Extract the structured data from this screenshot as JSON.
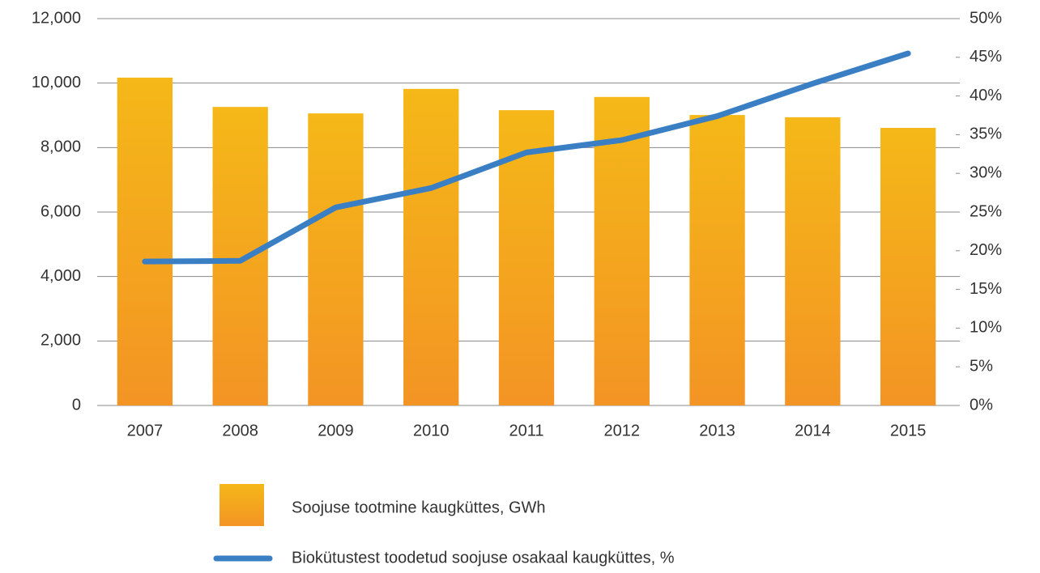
{
  "chart_data": {
    "type": "bar_line",
    "categories": [
      "2007",
      "2008",
      "2009",
      "2010",
      "2011",
      "2012",
      "2013",
      "2014",
      "2015"
    ],
    "series": [
      {
        "name": "Soojuse tootmine kaugküttes, GWh",
        "color": "#f5b818",
        "type": "bar",
        "values": [
          10170,
          9260,
          9060,
          9820,
          9160,
          9570,
          9010,
          8940,
          8610
        ]
      },
      {
        "name": "Biokütustest toodetud soojuse osakaal kaugküttes, %",
        "color": "#3a7fc4",
        "type": "line",
        "axis": "y2",
        "values": [
          18.6,
          18.7,
          25.6,
          28.1,
          32.7,
          34.3,
          37.4,
          41.6,
          45.5
        ]
      }
    ],
    "ylim": [
      0,
      12000
    ],
    "yticks": [
      0,
      {
        "value": 2000,
        "label": "2,000"
      },
      {
        "value": 4000,
        "label": "4,000"
      },
      {
        "value": 6000,
        "label": "6,000"
      },
      {
        "value": 8000,
        "label": "8,000"
      },
      {
        "value": 10000,
        "label": "10,000"
      },
      {
        "value": 12000,
        "label": "12,000"
      }
    ],
    "y2lim": [
      0,
      50
    ],
    "y2ticks": [
      {
        "value": 0,
        "label": "0%"
      },
      {
        "value": 5,
        "label": "5%"
      },
      {
        "value": 10,
        "label": "10%"
      },
      {
        "value": 15,
        "label": "15%"
      },
      {
        "value": 20,
        "label": "20%"
      },
      {
        "value": 25,
        "label": "25%"
      },
      {
        "value": 30,
        "label": "30%"
      },
      {
        "value": 35,
        "label": "35%"
      },
      {
        "value": 40,
        "label": "40%"
      },
      {
        "value": 45,
        "label": "45%"
      },
      {
        "value": 50,
        "label": "50%"
      }
    ],
    "grid": true
  }
}
